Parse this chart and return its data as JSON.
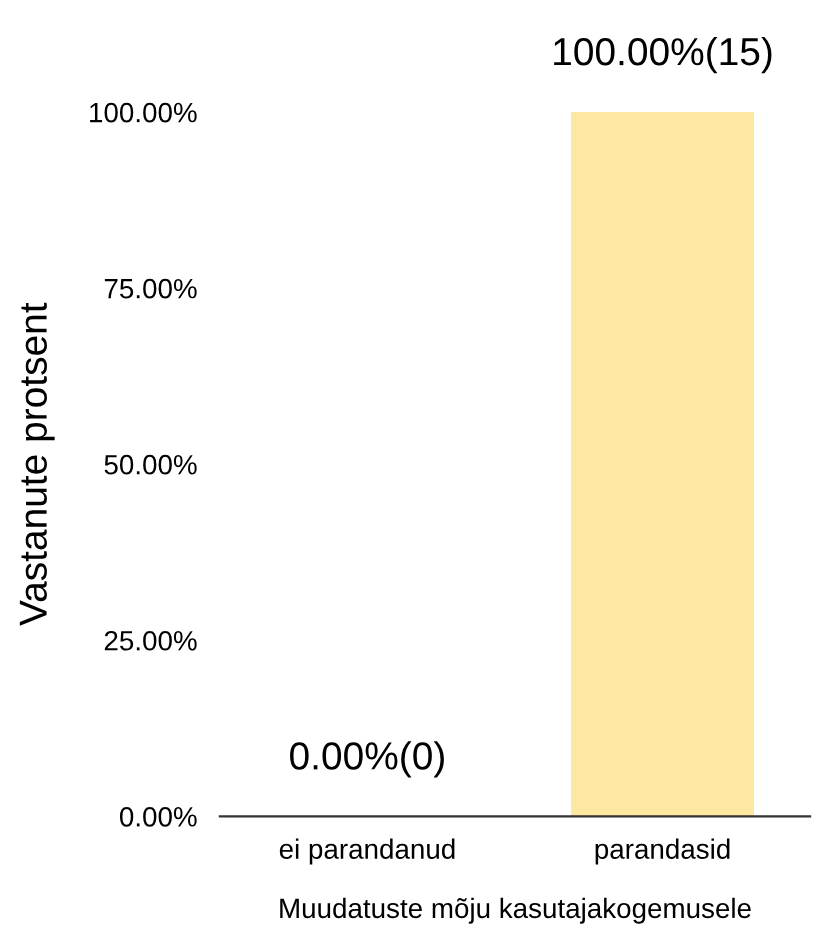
{
  "chart_data": {
    "type": "bar",
    "xlabel": "Muudatuste mõju kasutajakogemusele",
    "ylabel": "Vastanute protsent",
    "categories": [
      "ei parandanud",
      "parandasid"
    ],
    "values": [
      0,
      100
    ],
    "color": "#fce8a0",
    "value_labels": [
      "0.00%(0)",
      "100.00%(15)"
    ],
    "ylim": [
      0,
      100
    ],
    "yticks": [
      {
        "value": 0,
        "label": "0.00%"
      },
      {
        "value": 25,
        "label": "25.00%"
      },
      {
        "value": 50,
        "label": "50.00%"
      },
      {
        "value": 75,
        "label": "75.00%"
      },
      {
        "value": 100,
        "label": "100.00%"
      }
    ],
    "grid": false,
    "legend": false
  }
}
